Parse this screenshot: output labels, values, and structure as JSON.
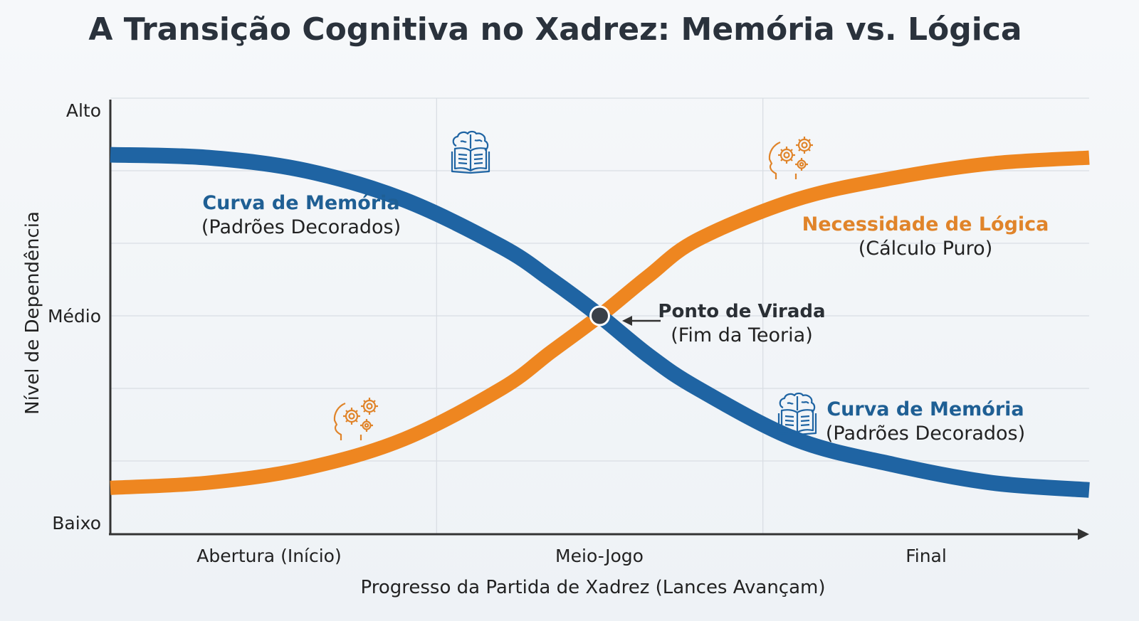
{
  "chart_data": {
    "type": "line",
    "title": "A Transição Cognitiva no Xadrez: Memória vs. Lógica",
    "xlabel": "Progresso da Partida de Xadrez (Lances Avançam)",
    "ylabel": "Nível de Dependência",
    "xlim": [
      0,
      100
    ],
    "ylim": [
      0,
      6
    ],
    "grid": true,
    "x_ticks": [
      {
        "value": 16.7,
        "label": "Abertura (Início)"
      },
      {
        "value": 50,
        "label": "Meio-Jogo"
      },
      {
        "value": 83.3,
        "label": "Final"
      }
    ],
    "y_ticks": [
      {
        "value": 6,
        "label": "Alto"
      },
      {
        "value": 3,
        "label": "Médio"
      },
      {
        "value": 0,
        "label": "Baixo"
      }
    ],
    "x": [
      0,
      10,
      20,
      30,
      40,
      45,
      50,
      55,
      60,
      70,
      80,
      90,
      100
    ],
    "series": [
      {
        "name": "Curva de Memória",
        "color": "#1f64a3",
        "values": [
          5.22,
          5.18,
          5.0,
          4.6,
          3.95,
          3.5,
          3.0,
          2.45,
          2.0,
          1.3,
          0.95,
          0.7,
          0.6
        ]
      },
      {
        "name": "Necessidade de Lógica",
        "color": "#ee8620",
        "values": [
          0.63,
          0.7,
          0.9,
          1.3,
          2.0,
          2.5,
          3.0,
          3.55,
          4.05,
          4.6,
          4.9,
          5.1,
          5.18
        ]
      }
    ],
    "annotations": {
      "memory_top": {
        "title": "Curva de Memória",
        "subtitle": "(Padrões Decorados)"
      },
      "logic": {
        "title": "Necessidade de Lógica",
        "subtitle": "(Cálculo Puro)"
      },
      "turning_point": {
        "title": "Ponto de Virada",
        "subtitle": "(Fim da Teoria)",
        "x": 50,
        "y": 3.0
      },
      "memory_bottom": {
        "title": "Curva de Memória",
        "subtitle": "(Padrões Decorados)"
      }
    },
    "icons": [
      "brain-book-icon",
      "head-gears-icon"
    ]
  }
}
